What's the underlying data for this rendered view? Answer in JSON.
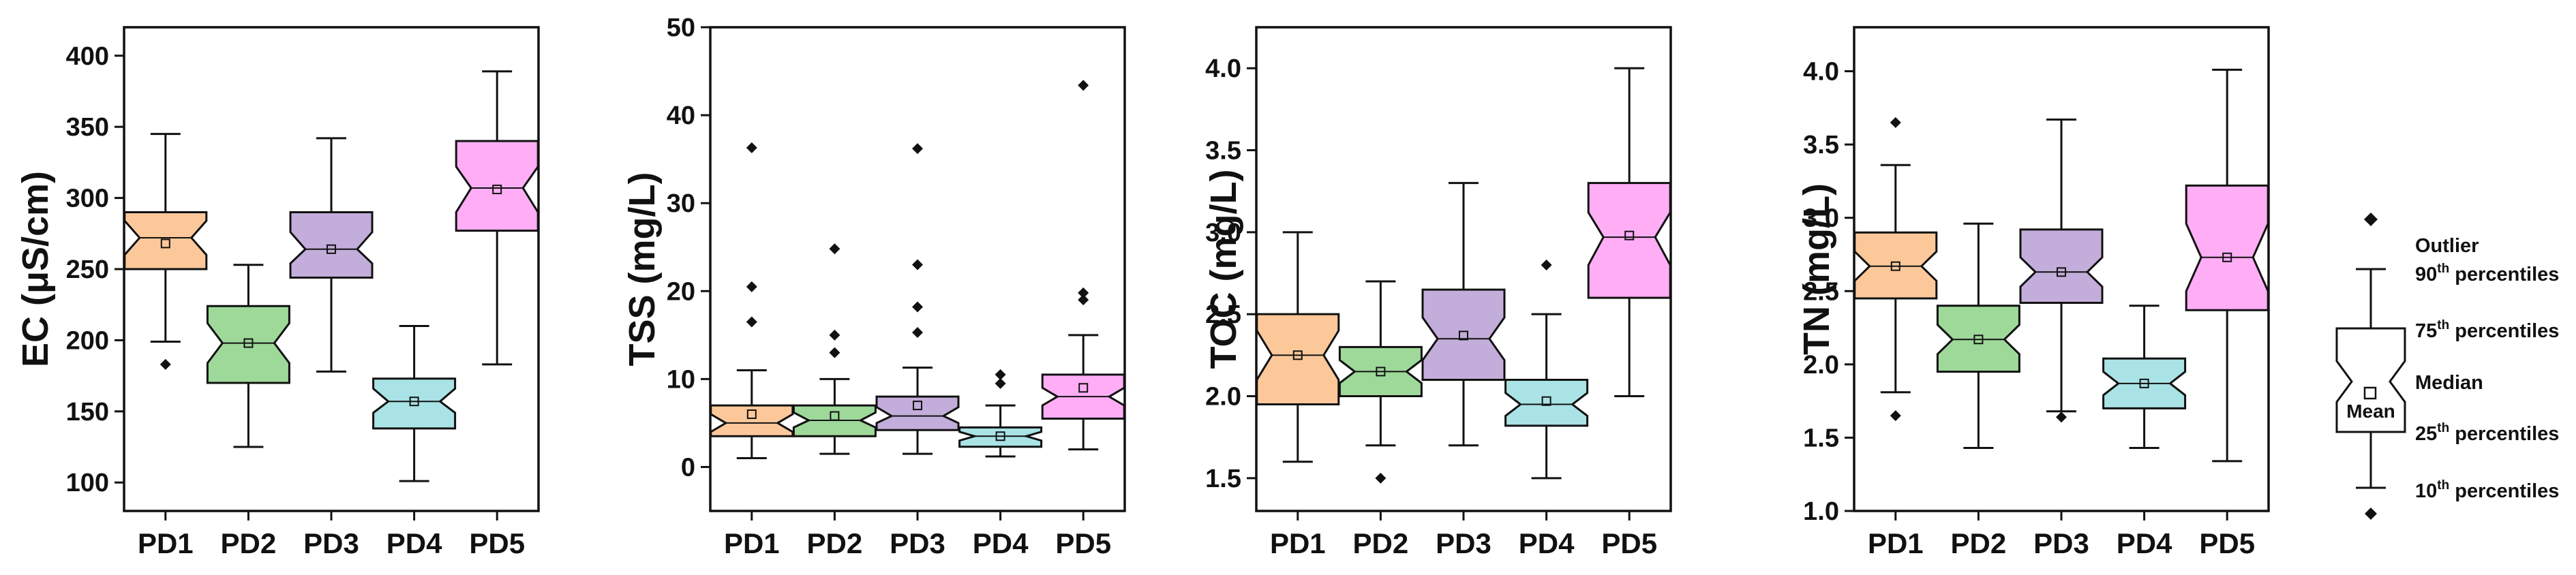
{
  "chart_data": [
    {
      "type": "box",
      "ylabel": "EC (μS/cm)",
      "ylim": [
        80,
        420
      ],
      "yticks": [
        100,
        150,
        200,
        250,
        300,
        350,
        400
      ],
      "categories": [
        "PD1",
        "PD2",
        "PD3",
        "PD4",
        "PD5"
      ],
      "series": [
        {
          "name": "PD1",
          "color": "#FCC89A",
          "whisker_low": 199,
          "q1": 250,
          "median": 272,
          "q3": 290,
          "whisker_high": 345,
          "mean": 268,
          "notch_low": 260,
          "notch_high": 284,
          "outliers": [
            183
          ]
        },
        {
          "name": "PD2",
          "color": "#9ED99A",
          "whisker_low": 125,
          "q1": 170,
          "median": 198,
          "q3": 224,
          "whisker_high": 253,
          "mean": 198,
          "notch_low": 184,
          "notch_high": 212,
          "outliers": []
        },
        {
          "name": "PD3",
          "color": "#C3ADDA",
          "whisker_low": 178,
          "q1": 244,
          "median": 264,
          "q3": 290,
          "whisker_high": 342,
          "mean": 264,
          "notch_low": 254,
          "notch_high": 276,
          "outliers": []
        },
        {
          "name": "PD4",
          "color": "#A9E3E5",
          "whisker_low": 101,
          "q1": 138,
          "median": 157,
          "q3": 173,
          "whisker_high": 210,
          "mean": 157,
          "notch_low": 149,
          "notch_high": 166,
          "outliers": []
        },
        {
          "name": "PD5",
          "color": "#FFADF5",
          "whisker_low": 183,
          "q1": 277,
          "median": 307,
          "q3": 340,
          "whisker_high": 389,
          "mean": 306,
          "notch_low": 290,
          "notch_high": 322,
          "outliers": []
        }
      ]
    },
    {
      "type": "box",
      "ylabel": "TSS (mg/L)",
      "ylim": [
        -5,
        50
      ],
      "yticks": [
        0,
        10,
        20,
        30,
        40,
        50
      ],
      "categories": [
        "PD1",
        "PD2",
        "PD3",
        "PD4",
        "PD5"
      ],
      "series": [
        {
          "name": "PD1",
          "color": "#FCC89A",
          "whisker_low": 1,
          "q1": 3.5,
          "median": 5,
          "q3": 7,
          "whisker_high": 11,
          "mean": 6,
          "notch_low": 4,
          "notch_high": 6,
          "outliers": [
            16.5,
            20.5,
            36.3
          ]
        },
        {
          "name": "PD2",
          "color": "#9ED99A",
          "whisker_low": 1.5,
          "q1": 3.5,
          "median": 5.3,
          "q3": 7,
          "whisker_high": 10,
          "mean": 5.8,
          "notch_low": 4.5,
          "notch_high": 6.2,
          "outliers": [
            13,
            15,
            24.8
          ]
        },
        {
          "name": "PD3",
          "color": "#C3ADDA",
          "whisker_low": 1.5,
          "q1": 4.2,
          "median": 5.8,
          "q3": 8,
          "whisker_high": 11.3,
          "mean": 7,
          "notch_low": 5,
          "notch_high": 6.8,
          "outliers": [
            15.3,
            18.2,
            23,
            36.2
          ]
        },
        {
          "name": "PD4",
          "color": "#A9E3E5",
          "whisker_low": 1.2,
          "q1": 2.3,
          "median": 3.5,
          "q3": 4.5,
          "whisker_high": 7,
          "mean": 3.5,
          "notch_low": 3,
          "notch_high": 4,
          "outliers": [
            9.5,
            10.5
          ]
        },
        {
          "name": "PD5",
          "color": "#FFADF5",
          "whisker_low": 2,
          "q1": 5.5,
          "median": 8,
          "q3": 10.5,
          "whisker_high": 15,
          "mean": 9,
          "notch_low": 7,
          "notch_high": 9,
          "outliers": [
            19,
            19.8,
            43.4
          ]
        }
      ]
    },
    {
      "type": "box",
      "ylabel": "TOC (mg/L)",
      "ylim": [
        1.3,
        4.25
      ],
      "yticks": [
        1.5,
        2.0,
        2.5,
        3.0,
        3.5,
        4.0
      ],
      "tick_decimals": 1,
      "categories": [
        "PD1",
        "PD2",
        "PD3",
        "PD4",
        "PD5"
      ],
      "series": [
        {
          "name": "PD1",
          "color": "#FCC89A",
          "whisker_low": 1.6,
          "q1": 1.95,
          "median": 2.25,
          "q3": 2.5,
          "whisker_high": 3.0,
          "mean": 2.25,
          "notch_low": 2.1,
          "notch_high": 2.4,
          "outliers": []
        },
        {
          "name": "PD2",
          "color": "#9ED99A",
          "whisker_low": 1.7,
          "q1": 2.0,
          "median": 2.15,
          "q3": 2.3,
          "whisker_high": 2.7,
          "mean": 2.15,
          "notch_low": 2.08,
          "notch_high": 2.22,
          "outliers": [
            1.5
          ]
        },
        {
          "name": "PD3",
          "color": "#C3ADDA",
          "whisker_low": 1.7,
          "q1": 2.1,
          "median": 2.35,
          "q3": 2.65,
          "whisker_high": 3.3,
          "mean": 2.37,
          "notch_low": 2.22,
          "notch_high": 2.48,
          "outliers": []
        },
        {
          "name": "PD4",
          "color": "#A9E3E5",
          "whisker_low": 1.5,
          "q1": 1.82,
          "median": 1.95,
          "q3": 2.1,
          "whisker_high": 2.5,
          "mean": 1.97,
          "notch_low": 1.88,
          "notch_high": 2.02,
          "outliers": [
            2.8
          ]
        },
        {
          "name": "PD5",
          "color": "#FFADF5",
          "whisker_low": 2.0,
          "q1": 2.6,
          "median": 2.97,
          "q3": 3.3,
          "whisker_high": 4.0,
          "mean": 2.98,
          "notch_low": 2.8,
          "notch_high": 3.12,
          "outliers": []
        }
      ]
    },
    {
      "type": "box",
      "ylabel": "TN (mg/L)",
      "ylim": [
        1.0,
        4.3
      ],
      "yticks": [
        1.0,
        1.5,
        2.0,
        2.5,
        3.0,
        3.5,
        4.0
      ],
      "tick_decimals": 1,
      "categories": [
        "PD1",
        "PD2",
        "PD3",
        "PD4",
        "PD5"
      ],
      "series": [
        {
          "name": "PD1",
          "color": "#FCC89A",
          "whisker_low": 1.81,
          "q1": 2.45,
          "median": 2.67,
          "q3": 2.9,
          "whisker_high": 3.36,
          "mean": 2.67,
          "notch_low": 2.57,
          "notch_high": 2.77,
          "outliers": [
            1.65,
            3.65
          ]
        },
        {
          "name": "PD2",
          "color": "#9ED99A",
          "whisker_low": 1.43,
          "q1": 1.95,
          "median": 2.17,
          "q3": 2.4,
          "whisker_high": 2.96,
          "mean": 2.17,
          "notch_low": 2.07,
          "notch_high": 2.27,
          "outliers": []
        },
        {
          "name": "PD3",
          "color": "#C3ADDA",
          "whisker_low": 1.68,
          "q1": 2.42,
          "median": 2.63,
          "q3": 2.92,
          "whisker_high": 3.67,
          "mean": 2.63,
          "notch_low": 2.53,
          "notch_high": 2.73,
          "outliers": [
            1.64
          ]
        },
        {
          "name": "PD4",
          "color": "#A9E3E5",
          "whisker_low": 1.43,
          "q1": 1.7,
          "median": 1.87,
          "q3": 2.04,
          "whisker_high": 2.4,
          "mean": 1.87,
          "notch_low": 1.79,
          "notch_high": 1.95,
          "outliers": []
        },
        {
          "name": "PD5",
          "color": "#FFADF5",
          "whisker_low": 1.34,
          "q1": 2.37,
          "median": 2.73,
          "q3": 3.22,
          "whisker_high": 4.01,
          "mean": 2.73,
          "notch_low": 2.5,
          "notch_high": 2.96,
          "outliers": []
        }
      ]
    }
  ],
  "legend": {
    "outlier": "Outlier",
    "p90": "90th percentiles",
    "p75": "75th percentiles",
    "median": "Median",
    "p25": "25th percentiles",
    "p10": "10th percentiles",
    "mean": "Mean",
    "sup": "th",
    "suffix": "percentiles"
  }
}
